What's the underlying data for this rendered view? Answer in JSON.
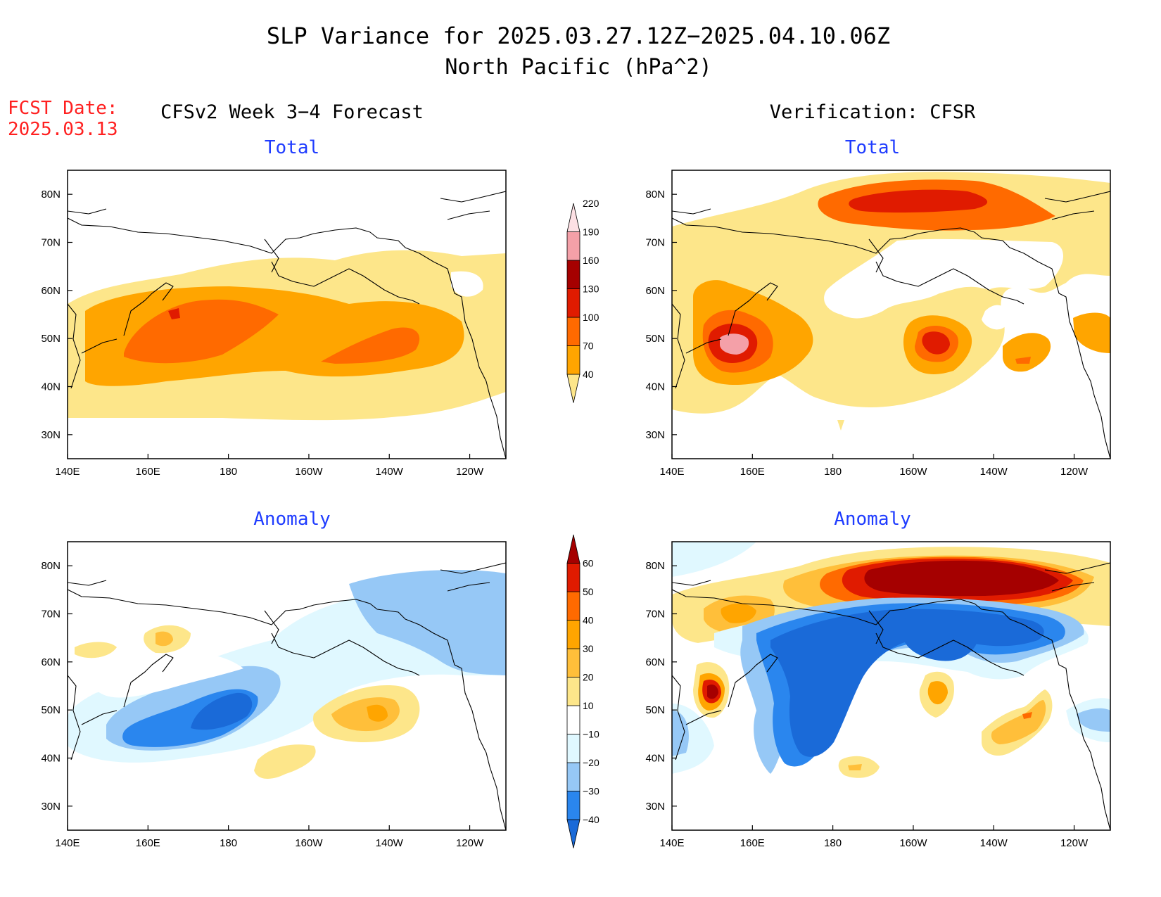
{
  "header": {
    "title_line1": "SLP Variance for 2025.03.27.12Z−2025.04.10.06Z",
    "title_line2": "North Pacific (hPa^2)",
    "fcst_label": "FCST Date:",
    "fcst_date": "2025.03.13",
    "left_column_title": "CFSv2 Week 3−4 Forecast",
    "right_column_title": "Verification: CFSR"
  },
  "panels": {
    "total_label": "Total",
    "anomaly_label": "Anomaly"
  },
  "axes": {
    "lat_ticks": [
      "80N",
      "70N",
      "60N",
      "50N",
      "40N",
      "30N"
    ],
    "lat_values": [
      80,
      70,
      60,
      50,
      40,
      30
    ],
    "lon_ticks": [
      "140E",
      "160E",
      "180",
      "160W",
      "140W",
      "120W"
    ],
    "lon_values": [
      140,
      160,
      180,
      200,
      220,
      240
    ],
    "lon_range": [
      140,
      249
    ],
    "lat_range": [
      25,
      85
    ]
  },
  "colorbars": {
    "total": {
      "labels": [
        "40",
        "70",
        "100",
        "130",
        "160",
        "190",
        "220"
      ],
      "colors": [
        "#fde68a",
        "#ffa500",
        "#ff6a00",
        "#e01b00",
        "#a50000",
        "#f4a0a8",
        "#fde0e4"
      ]
    },
    "anomaly": {
      "labels": [
        "−40",
        "−30",
        "−20",
        "−10",
        "10",
        "20",
        "30",
        "40",
        "50",
        "60"
      ],
      "colors": [
        "#1a6ad8",
        "#2a86ee",
        "#96c8f6",
        "#e0f8ff",
        "#ffffff",
        "#fde68a",
        "#ffbf3a",
        "#ffa500",
        "#ff6a00",
        "#e01b00",
        "#a50000"
      ]
    }
  },
  "map_data": {
    "region": "North Pacific",
    "units": "hPa^2",
    "fields": [
      "Forecast total SLP variance",
      "Verification total SLP variance",
      "Forecast SLP variance anomaly",
      "Verification SLP variance anomaly"
    ]
  }
}
